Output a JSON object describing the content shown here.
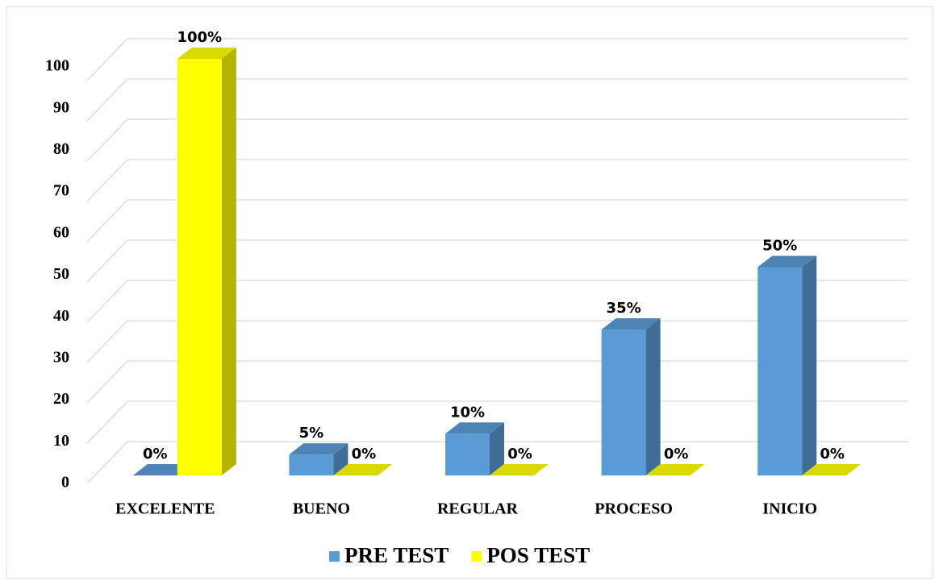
{
  "chart_data": {
    "type": "bar3d",
    "categories": [
      "EXCELENTE",
      "BUENO",
      "REGULAR",
      "PROCESO",
      "INICIO"
    ],
    "series": [
      {
        "name": "PRE TEST",
        "color": "#5b9bd5",
        "values": [
          0,
          5,
          10,
          35,
          50
        ],
        "value_labels": [
          "0%",
          "5%",
          "10%",
          "35%",
          "50%"
        ]
      },
      {
        "name": "POS TEST",
        "color": "#ffff00",
        "values": [
          100,
          0,
          0,
          0,
          0
        ],
        "value_labels": [
          "100%",
          "0%",
          "0%",
          "0%",
          "0%"
        ]
      }
    ],
    "ylim": [
      0,
      100
    ],
    "yticks": [
      0,
      10,
      20,
      30,
      40,
      50,
      60,
      70,
      80,
      90,
      100
    ],
    "grid": true,
    "legend": "bottom"
  }
}
